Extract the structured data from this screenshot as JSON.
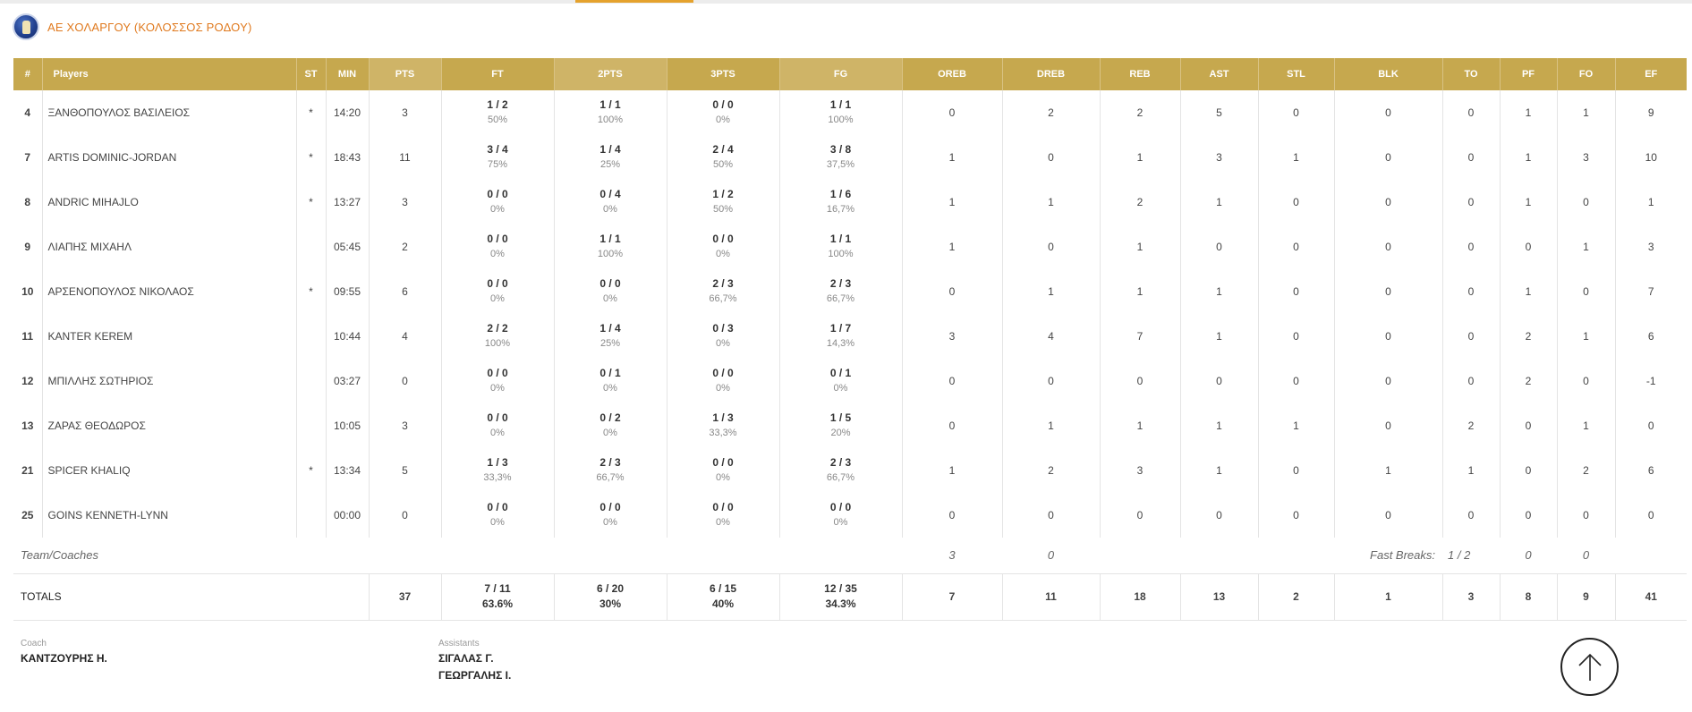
{
  "team": {
    "name": "ΑΕ ΧΟΛΑΡΓΟΥ (ΚΟΛΟΣΣΟΣ ΡΟΔΟΥ)",
    "logo_icon": "team-crest-icon"
  },
  "columns": [
    "#",
    "Players",
    "ST",
    "MIN",
    "PTS",
    "FT",
    "2PTS",
    "3PTS",
    "FG",
    "OREB",
    "DREB",
    "REB",
    "AST",
    "STL",
    "BLK",
    "TO",
    "PF",
    "FO",
    "EF"
  ],
  "players": [
    {
      "num": "4",
      "name": "ΞΑΝΘΟΠΟΥΛΟΣ ΒΑΣΙΛΕΙΟΣ",
      "st": "*",
      "min": "14:20",
      "pts": "3",
      "ft": [
        "1 / 2",
        "50%"
      ],
      "p2": [
        "1 / 1",
        "100%"
      ],
      "p3": [
        "0 / 0",
        "0%"
      ],
      "fg": [
        "1 / 1",
        "100%"
      ],
      "oreb": "0",
      "dreb": "2",
      "reb": "2",
      "ast": "5",
      "stl": "0",
      "blk": "0",
      "to": "0",
      "pf": "1",
      "fo": "1",
      "ef": "9"
    },
    {
      "num": "7",
      "name": "ARTIS DOMINIC-JORDAN",
      "st": "*",
      "min": "18:43",
      "pts": "11",
      "ft": [
        "3 / 4",
        "75%"
      ],
      "p2": [
        "1 / 4",
        "25%"
      ],
      "p3": [
        "2 / 4",
        "50%"
      ],
      "fg": [
        "3 / 8",
        "37,5%"
      ],
      "oreb": "1",
      "dreb": "0",
      "reb": "1",
      "ast": "3",
      "stl": "1",
      "blk": "0",
      "to": "0",
      "pf": "1",
      "fo": "3",
      "ef": "10"
    },
    {
      "num": "8",
      "name": "ANDRIC MIHAJLO",
      "st": "*",
      "min": "13:27",
      "pts": "3",
      "ft": [
        "0 / 0",
        "0%"
      ],
      "p2": [
        "0 / 4",
        "0%"
      ],
      "p3": [
        "1 / 2",
        "50%"
      ],
      "fg": [
        "1 / 6",
        "16,7%"
      ],
      "oreb": "1",
      "dreb": "1",
      "reb": "2",
      "ast": "1",
      "stl": "0",
      "blk": "0",
      "to": "0",
      "pf": "1",
      "fo": "0",
      "ef": "1"
    },
    {
      "num": "9",
      "name": "ΛΙΑΠΗΣ ΜΙΧΑΗΛ",
      "st": "",
      "min": "05:45",
      "pts": "2",
      "ft": [
        "0 / 0",
        "0%"
      ],
      "p2": [
        "1 / 1",
        "100%"
      ],
      "p3": [
        "0 / 0",
        "0%"
      ],
      "fg": [
        "1 / 1",
        "100%"
      ],
      "oreb": "1",
      "dreb": "0",
      "reb": "1",
      "ast": "0",
      "stl": "0",
      "blk": "0",
      "to": "0",
      "pf": "0",
      "fo": "1",
      "ef": "3"
    },
    {
      "num": "10",
      "name": "ΑΡΣΕΝΟΠΟΥΛΟΣ ΝΙΚΟΛΑΟΣ",
      "st": "*",
      "min": "09:55",
      "pts": "6",
      "ft": [
        "0 / 0",
        "0%"
      ],
      "p2": [
        "0 / 0",
        "0%"
      ],
      "p3": [
        "2 / 3",
        "66,7%"
      ],
      "fg": [
        "2 / 3",
        "66,7%"
      ],
      "oreb": "0",
      "dreb": "1",
      "reb": "1",
      "ast": "1",
      "stl": "0",
      "blk": "0",
      "to": "0",
      "pf": "1",
      "fo": "0",
      "ef": "7"
    },
    {
      "num": "11",
      "name": "KANTER KEREM",
      "st": "",
      "min": "10:44",
      "pts": "4",
      "ft": [
        "2 / 2",
        "100%"
      ],
      "p2": [
        "1 / 4",
        "25%"
      ],
      "p3": [
        "0 / 3",
        "0%"
      ],
      "fg": [
        "1 / 7",
        "14,3%"
      ],
      "oreb": "3",
      "dreb": "4",
      "reb": "7",
      "ast": "1",
      "stl": "0",
      "blk": "0",
      "to": "0",
      "pf": "2",
      "fo": "1",
      "ef": "6"
    },
    {
      "num": "12",
      "name": "ΜΠΙΛΛΗΣ ΣΩΤΗΡΙΟΣ",
      "st": "",
      "min": "03:27",
      "pts": "0",
      "ft": [
        "0 / 0",
        "0%"
      ],
      "p2": [
        "0 / 1",
        "0%"
      ],
      "p3": [
        "0 / 0",
        "0%"
      ],
      "fg": [
        "0 / 1",
        "0%"
      ],
      "oreb": "0",
      "dreb": "0",
      "reb": "0",
      "ast": "0",
      "stl": "0",
      "blk": "0",
      "to": "0",
      "pf": "2",
      "fo": "0",
      "ef": "-1"
    },
    {
      "num": "13",
      "name": "ΖΑΡΑΣ ΘΕΟΔΩΡΟΣ",
      "st": "",
      "min": "10:05",
      "pts": "3",
      "ft": [
        "0 / 0",
        "0%"
      ],
      "p2": [
        "0 / 2",
        "0%"
      ],
      "p3": [
        "1 / 3",
        "33,3%"
      ],
      "fg": [
        "1 / 5",
        "20%"
      ],
      "oreb": "0",
      "dreb": "1",
      "reb": "1",
      "ast": "1",
      "stl": "1",
      "blk": "0",
      "to": "2",
      "pf": "0",
      "fo": "1",
      "ef": "0"
    },
    {
      "num": "21",
      "name": "SPICER KHALIQ",
      "st": "*",
      "min": "13:34",
      "pts": "5",
      "ft": [
        "1 / 3",
        "33,3%"
      ],
      "p2": [
        "2 / 3",
        "66,7%"
      ],
      "p3": [
        "0 / 0",
        "0%"
      ],
      "fg": [
        "2 / 3",
        "66,7%"
      ],
      "oreb": "1",
      "dreb": "2",
      "reb": "3",
      "ast": "1",
      "stl": "0",
      "blk": "1",
      "to": "1",
      "pf": "0",
      "fo": "2",
      "ef": "6"
    },
    {
      "num": "25",
      "name": "GOINS KENNETH-LYNN",
      "st": "",
      "min": "00:00",
      "pts": "0",
      "ft": [
        "0 / 0",
        "0%"
      ],
      "p2": [
        "0 / 0",
        "0%"
      ],
      "p3": [
        "0 / 0",
        "0%"
      ],
      "fg": [
        "0 / 0",
        "0%"
      ],
      "oreb": "0",
      "dreb": "0",
      "reb": "0",
      "ast": "0",
      "stl": "0",
      "blk": "0",
      "to": "0",
      "pf": "0",
      "fo": "0",
      "ef": "0"
    }
  ],
  "team_coaches": {
    "label": "Team/Coaches",
    "oreb": "3",
    "dreb": "0",
    "fast_breaks_label": "Fast Breaks:",
    "fast_breaks_value": "1 / 2",
    "to": "0",
    "pf": "0"
  },
  "totals": {
    "label": "TOTALS",
    "pts": "37",
    "ft": [
      "7 / 11",
      "63.6%"
    ],
    "p2": [
      "6 / 20",
      "30%"
    ],
    "p3": [
      "6 / 15",
      "40%"
    ],
    "fg": [
      "12 / 35",
      "34.3%"
    ],
    "oreb": "7",
    "dreb": "11",
    "reb": "18",
    "ast": "13",
    "stl": "2",
    "blk": "1",
    "to": "3",
    "pf": "8",
    "fo": "9",
    "ef": "41"
  },
  "staff": {
    "coach_label": "Coach",
    "coach": "ΚΑΝΤΖΟΥΡΗΣ Η.",
    "assistants_label": "Assistants",
    "assistants": [
      "ΣΙΓΑΛΑΣ Γ.",
      "ΓΕΩΡΓΑΛΗΣ Ι."
    ]
  },
  "scroll_top_icon": "arrow-up-icon"
}
